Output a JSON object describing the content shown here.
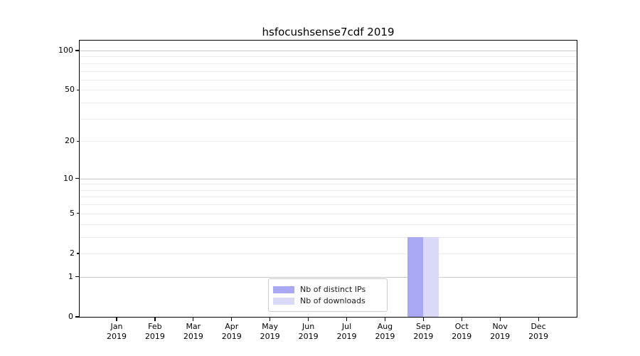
{
  "chart_data": {
    "type": "bar",
    "title": "hsfocushsense7cdf 2019",
    "x_year": "2019",
    "categories": [
      "Jan",
      "Feb",
      "Mar",
      "Apr",
      "May",
      "Jun",
      "Jul",
      "Aug",
      "Sep",
      "Oct",
      "Nov",
      "Dec"
    ],
    "series": [
      {
        "name": "Nb of distinct IPs",
        "color": "#a8a8f5",
        "values": [
          0,
          0,
          0,
          0,
          0,
          0,
          0,
          0,
          3,
          0,
          0,
          0
        ]
      },
      {
        "name": "Nb of downloads",
        "color": "#dadaf8",
        "values": [
          0,
          0,
          0,
          0,
          0,
          0,
          0,
          0,
          3,
          0,
          0,
          0
        ]
      }
    ],
    "y_scale": "log1p",
    "ylim": [
      0,
      119
    ],
    "y_tick_values": [
      0,
      1,
      2,
      5,
      10,
      20,
      50,
      100
    ],
    "y_tick_labels": [
      "0",
      "1",
      "2",
      "5",
      "10",
      "20",
      "50",
      "100"
    ],
    "y_major_gridlines": [
      1,
      10,
      100
    ],
    "y_minor_gridlines": [
      2,
      3,
      4,
      5,
      6,
      7,
      8,
      9,
      20,
      30,
      40,
      50,
      60,
      70,
      80,
      90
    ],
    "grid": true,
    "legend_position": "lower center",
    "colors": {
      "axis": "#000000",
      "background": "#ffffff",
      "major_grid": "#c9c9c9",
      "minor_grid": "#ececec"
    }
  }
}
